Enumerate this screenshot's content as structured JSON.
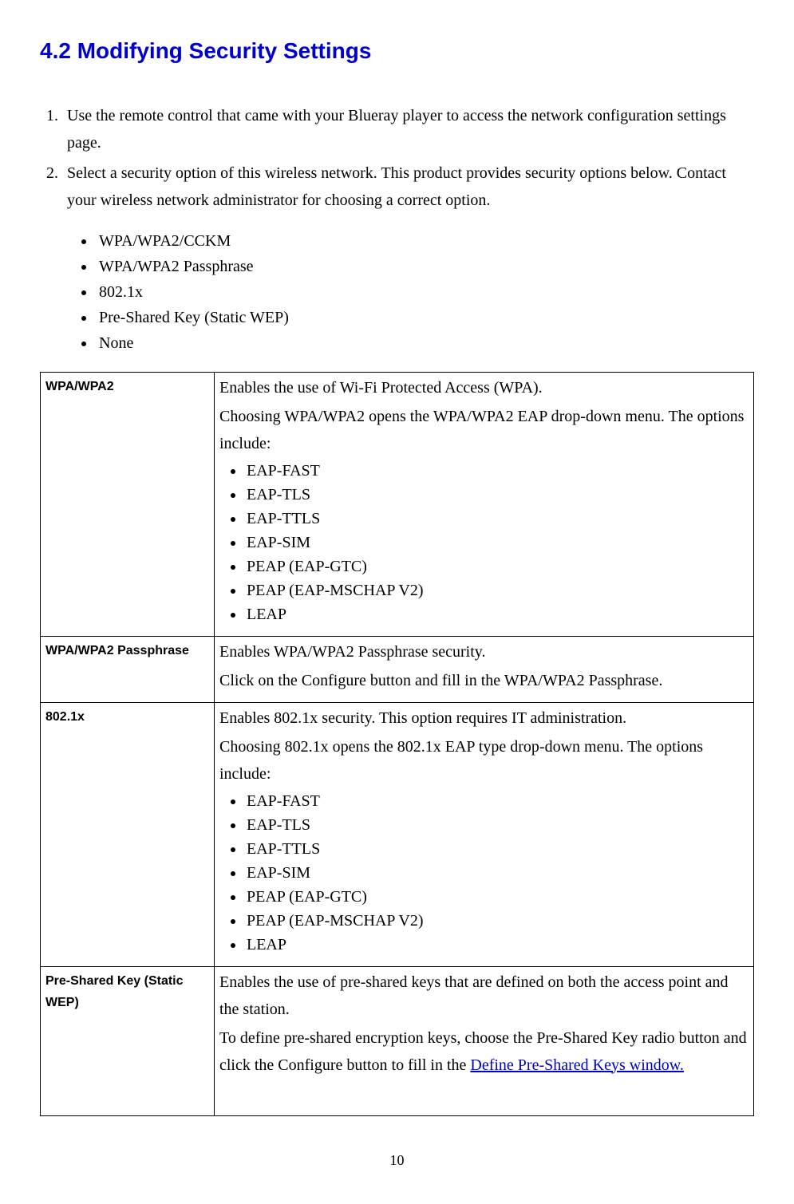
{
  "heading": "4.2 Modifying Security Settings",
  "heading_color": "#0000cc",
  "heading_fontfamily": "Arial",
  "heading_fontsize": 28,
  "body_fontfamily": "Times New Roman",
  "body_fontsize": 20,
  "steps": [
    "Use the remote control that came with your Blueray player to access the network configuration settings page.",
    "Select a security option of this wireless network. This product provides security options below. Contact your wireless network administrator for choosing a correct option."
  ],
  "options": [
    "WPA/WPA2/CCKM",
    "WPA/WPA2 Passphrase",
    "802.1x",
    "Pre-Shared Key (Static WEP)",
    "None"
  ],
  "table": {
    "border_color": "#000000",
    "label_col_width": 205,
    "label_fontfamily": "Arial",
    "label_fontsize": 16,
    "rows": [
      {
        "label": "WPA/WPA2",
        "desc_lines": [
          "Enables the use of Wi-Fi Protected Access (WPA).",
          "Choosing WPA/WPA2 opens the WPA/WPA2 EAP drop-down menu. The options include:"
        ],
        "eap": [
          "EAP-FAST",
          "EAP-TLS",
          "EAP-TTLS",
          "EAP-SIM",
          "PEAP (EAP-GTC)",
          "PEAP (EAP-MSCHAP V2)",
          "LEAP"
        ]
      },
      {
        "label": "WPA/WPA2 Passphrase",
        "desc_lines": [
          "Enables WPA/WPA2 Passphrase security.",
          "Click on the Configure button and fill in the WPA/WPA2 Passphrase."
        ],
        "eap": []
      },
      {
        "label": "802.1x",
        "desc_lines": [
          "Enables 802.1x security.   This option requires IT administration.",
          "Choosing 802.1x opens the 802.1x EAP type drop-down menu.   The options include:"
        ],
        "gap_after_desc": true,
        "eap": [
          "EAP-FAST",
          "EAP-TLS",
          "EAP-TTLS",
          "EAP-SIM",
          "PEAP (EAP-GTC)",
          "PEAP (EAP-MSCHAP V2)",
          "LEAP"
        ]
      },
      {
        "label": "Pre-Shared Key (Static WEP)",
        "desc_lines": [
          "Enables the use of pre-shared keys that are defined on both the access point and the station.",
          "To define pre-shared encryption keys, choose the Pre-Shared Key radio button and click the Configure button to fill in the "
        ],
        "link_text": "Define Pre-Shared Keys window.",
        "link_color": "#0000cc",
        "eap": []
      }
    ]
  },
  "page_number": "10"
}
